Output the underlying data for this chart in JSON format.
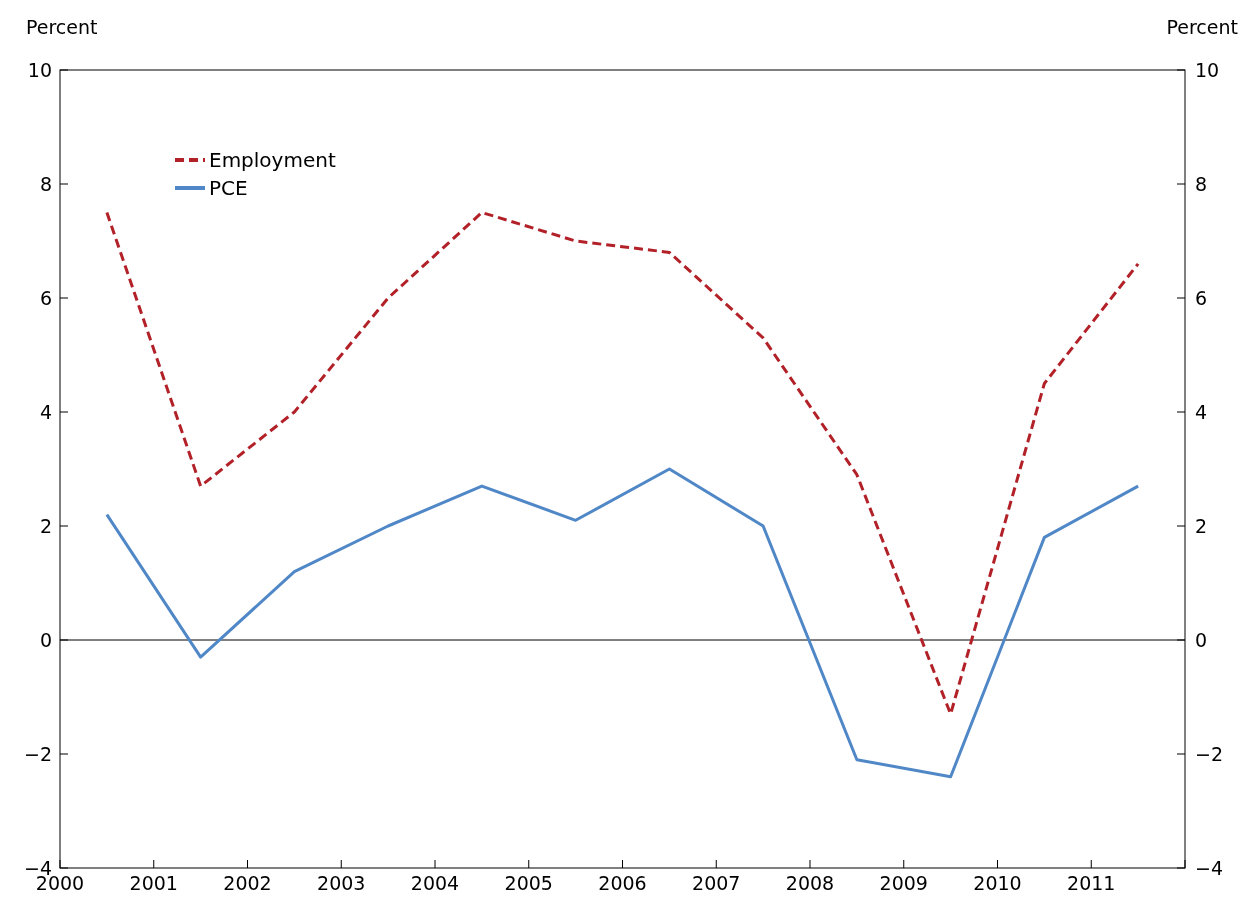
{
  "chart_data": {
    "type": "line",
    "ylabel": "Percent",
    "y2label": "Percent",
    "x": [
      2000.5,
      2001.5,
      2002.5,
      2003.5,
      2004.5,
      2005.5,
      2006.5,
      2007.5,
      2008.5,
      2009.5,
      2010.5,
      2011.5
    ],
    "series": [
      {
        "name": "Employment",
        "color": "#b22028",
        "line_style": "dashed",
        "values": [
          7.5,
          2.7,
          4.0,
          6.0,
          7.5,
          7.0,
          6.8,
          5.3,
          2.9,
          -1.3,
          4.5,
          6.6
        ]
      },
      {
        "name": "PCE",
        "color": "#4f87c7",
        "line_style": "solid",
        "values": [
          2.2,
          -0.3,
          1.2,
          2.0,
          2.7,
          2.1,
          3.0,
          2.0,
          -2.1,
          -2.4,
          1.8,
          2.7
        ]
      }
    ],
    "xlim": [
      2000,
      2012
    ],
    "xticks": [
      2000,
      2001,
      2002,
      2003,
      2004,
      2005,
      2006,
      2007,
      2008,
      2009,
      2010,
      2011,
      {
        "value": 2012,
        "label": null
      }
    ],
    "ylim": [
      -4,
      10
    ],
    "yticks": [
      {
        "value": -4,
        "label": "−4"
      },
      {
        "value": -2,
        "label": "−2"
      },
      0,
      2,
      4,
      6,
      8,
      10
    ],
    "y2lim": [
      -4,
      10
    ],
    "y2ticks": [
      {
        "value": -4,
        "label": "−4"
      },
      {
        "value": -2,
        "label": "−2"
      },
      0,
      2,
      4,
      6,
      8,
      10
    ],
    "ref_lines": [
      {
        "axis": "y",
        "value": 0,
        "color": "#000000"
      }
    ],
    "legend": "top left",
    "grid": false,
    "marker": "none"
  }
}
